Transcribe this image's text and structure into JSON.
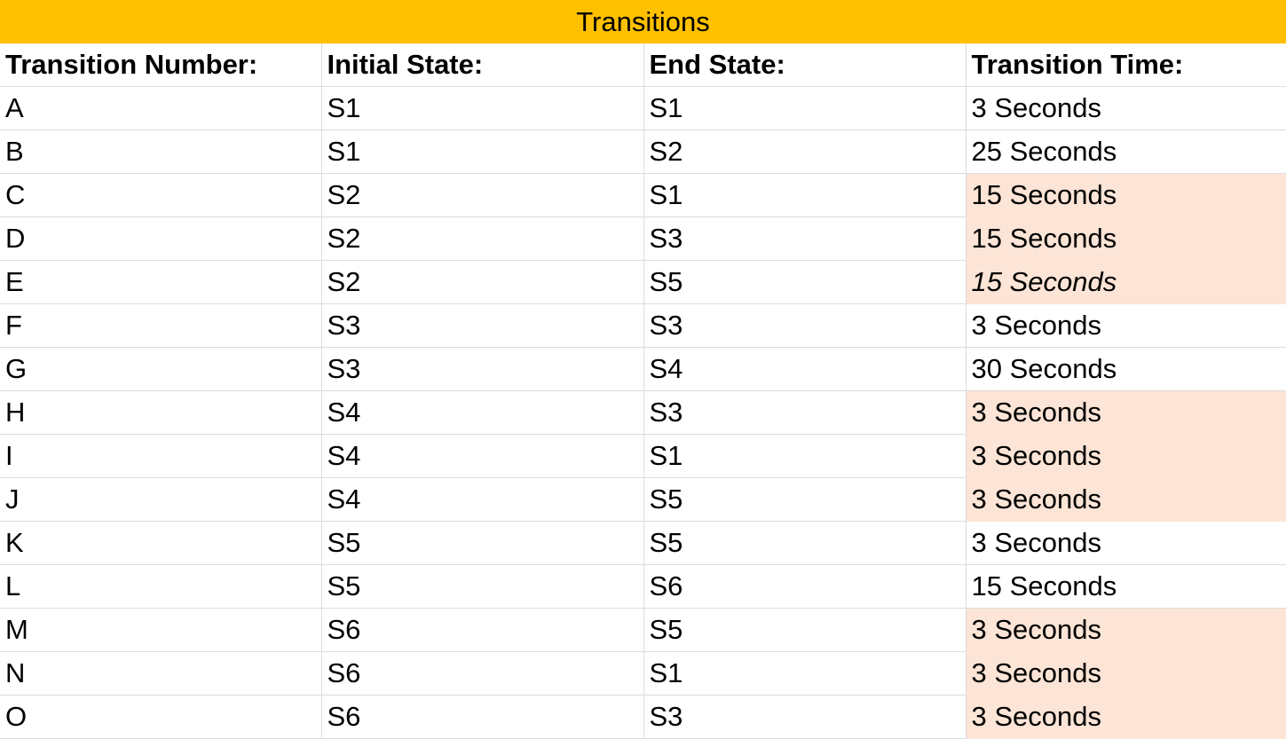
{
  "title": "Transitions",
  "colors": {
    "title_background": "#ffc000",
    "highlight_background": "#fce4d6",
    "gridline": "#dcdcdc"
  },
  "headers": [
    "Transition Number:",
    "Initial State:",
    "End State:",
    "Transition Time:"
  ],
  "rows": [
    {
      "number": "A",
      "initial": "S1",
      "end": "S1",
      "time": "3 Seconds",
      "highlight": false,
      "italic": false
    },
    {
      "number": "B",
      "initial": "S1",
      "end": "S2",
      "time": "25 Seconds",
      "highlight": false,
      "italic": false
    },
    {
      "number": "C",
      "initial": "S2",
      "end": "S1",
      "time": "15 Seconds",
      "highlight": true,
      "italic": false
    },
    {
      "number": "D",
      "initial": "S2",
      "end": "S3",
      "time": "15 Seconds",
      "highlight": true,
      "italic": false
    },
    {
      "number": "E",
      "initial": "S2",
      "end": "S5",
      "time": "15 Seconds",
      "highlight": true,
      "italic": true
    },
    {
      "number": "F",
      "initial": "S3",
      "end": "S3",
      "time": "3 Seconds",
      "highlight": false,
      "italic": false
    },
    {
      "number": "G",
      "initial": "S3",
      "end": "S4",
      "time": "30 Seconds",
      "highlight": false,
      "italic": false
    },
    {
      "number": "H",
      "initial": "S4",
      "end": "S3",
      "time": "3 Seconds",
      "highlight": true,
      "italic": false
    },
    {
      "number": "I",
      "initial": "S4",
      "end": "S1",
      "time": "3 Seconds",
      "highlight": true,
      "italic": false
    },
    {
      "number": "J",
      "initial": "S4",
      "end": "S5",
      "time": "3 Seconds",
      "highlight": true,
      "italic": false
    },
    {
      "number": "K",
      "initial": "S5",
      "end": "S5",
      "time": "3 Seconds",
      "highlight": false,
      "italic": false
    },
    {
      "number": "L",
      "initial": "S5",
      "end": "S6",
      "time": "15 Seconds",
      "highlight": false,
      "italic": false
    },
    {
      "number": "M",
      "initial": "S6",
      "end": "S5",
      "time": "3 Seconds",
      "highlight": true,
      "italic": false
    },
    {
      "number": "N",
      "initial": "S6",
      "end": "S1",
      "time": "3 Seconds",
      "highlight": true,
      "italic": false
    },
    {
      "number": "O",
      "initial": "S6",
      "end": "S3",
      "time": "3 Seconds",
      "highlight": true,
      "italic": false
    }
  ]
}
